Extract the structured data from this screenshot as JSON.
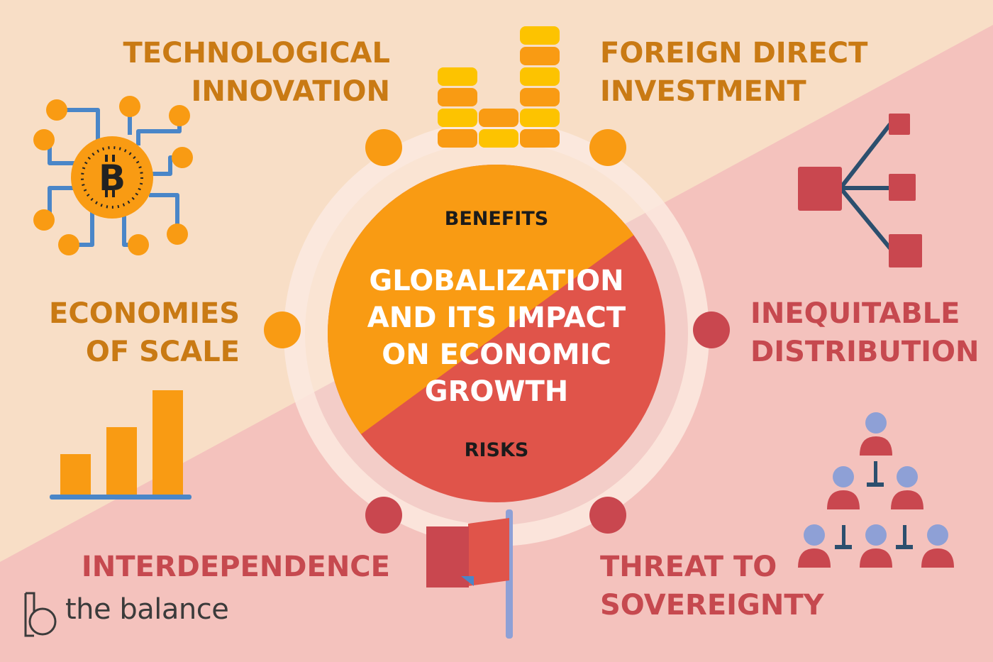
{
  "title": {
    "line1": "GLOBALIZATION",
    "line2": "AND ITS IMPACT",
    "line3": "ON ECONOMIC",
    "line4": "GROWTH"
  },
  "sections": {
    "benefits_label": "BENEFITS",
    "risks_label": "RISKS"
  },
  "benefits": [
    {
      "line1": "TECHNOLOGICAL",
      "line2": "INNOVATION",
      "icon": "bitcoin-circuit-icon"
    },
    {
      "line1": "FOREIGN DIRECT",
      "line2": "INVESTMENT",
      "icon": "coin-stacks-icon"
    },
    {
      "line1": "ECONOMIES",
      "line2": "OF SCALE",
      "icon": "bar-chart-icon"
    }
  ],
  "risks": [
    {
      "line1": "INEQUITABLE",
      "line2": "DISTRIBUTION",
      "icon": "hierarchy-tree-icon"
    },
    {
      "line1": "INTERDEPENDENCE",
      "icon": "flag-icon"
    },
    {
      "line1": "THREAT TO",
      "line2": "SOVEREIGNTY",
      "icon": "people-pyramid-icon"
    }
  ],
  "brand": {
    "name": "the balance",
    "icon": "the-balance-logo"
  },
  "colors": {
    "bg_top": "#f8dec6",
    "bg_bottom": "#f4c2bd",
    "orange": "#f99b13",
    "orange_text": "#c97a14",
    "red": "#e0544a",
    "red_text": "#c6494f",
    "gold": "#fdc300",
    "blue": "#4a86c8",
    "navy": "#2c4f6e",
    "lavender": "#8ea0d6",
    "brick": "#c9474f"
  }
}
